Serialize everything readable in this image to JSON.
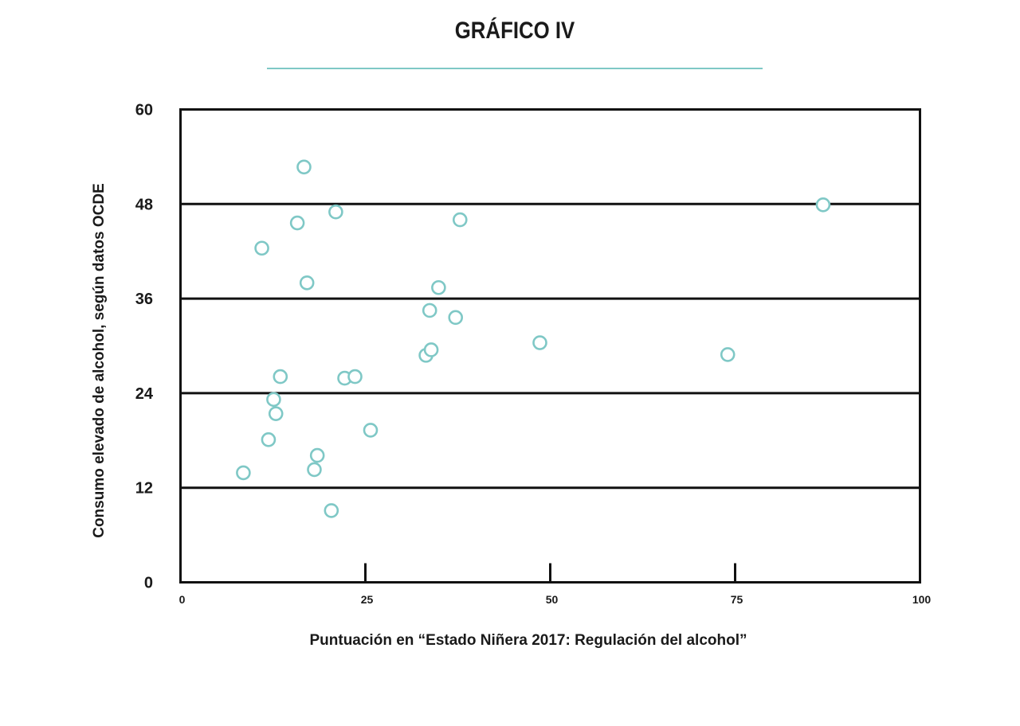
{
  "page": {
    "title": "GRÁFICO IV",
    "rule_color": "#7fc8c6"
  },
  "chart_data": {
    "type": "scatter",
    "title": "GRÁFICO IV",
    "xlabel": "Puntuación en “Estado Niñera 2017: Regulación del alcohol”",
    "ylabel": "Consumo elevado de alcohol, según datos OCDE",
    "xlim": [
      0,
      100
    ],
    "ylim": [
      0,
      60
    ],
    "x_ticks": [
      "0",
      "25",
      "50",
      "75",
      "100"
    ],
    "x_tick_values": [
      0,
      25,
      50,
      75,
      100
    ],
    "y_ticks": [
      "0",
      "12",
      "24",
      "36",
      "48",
      "60"
    ],
    "y_tick_values": [
      0,
      12,
      24,
      36,
      48,
      60
    ],
    "grid": "horizontal",
    "marker_color": "#7fc8c6",
    "axis_color": "#111111",
    "points": [
      {
        "x": 8.5,
        "y": 13.9
      },
      {
        "x": 11.0,
        "y": 42.4
      },
      {
        "x": 11.9,
        "y": 18.1
      },
      {
        "x": 12.6,
        "y": 23.2
      },
      {
        "x": 12.9,
        "y": 21.4
      },
      {
        "x": 13.5,
        "y": 26.1
      },
      {
        "x": 15.8,
        "y": 45.6
      },
      {
        "x": 16.7,
        "y": 52.7
      },
      {
        "x": 17.1,
        "y": 38.0
      },
      {
        "x": 18.1,
        "y": 14.3
      },
      {
        "x": 18.5,
        "y": 16.1
      },
      {
        "x": 20.4,
        "y": 9.1
      },
      {
        "x": 21.0,
        "y": 47.0
      },
      {
        "x": 22.2,
        "y": 25.9
      },
      {
        "x": 23.6,
        "y": 26.1
      },
      {
        "x": 25.7,
        "y": 19.3
      },
      {
        "x": 33.2,
        "y": 28.8
      },
      {
        "x": 33.7,
        "y": 34.5
      },
      {
        "x": 33.9,
        "y": 29.5
      },
      {
        "x": 34.9,
        "y": 37.4
      },
      {
        "x": 37.2,
        "y": 33.6
      },
      {
        "x": 37.8,
        "y": 46.0
      },
      {
        "x": 48.6,
        "y": 30.4
      },
      {
        "x": 74.0,
        "y": 28.9
      },
      {
        "x": 86.9,
        "y": 47.9
      }
    ]
  }
}
